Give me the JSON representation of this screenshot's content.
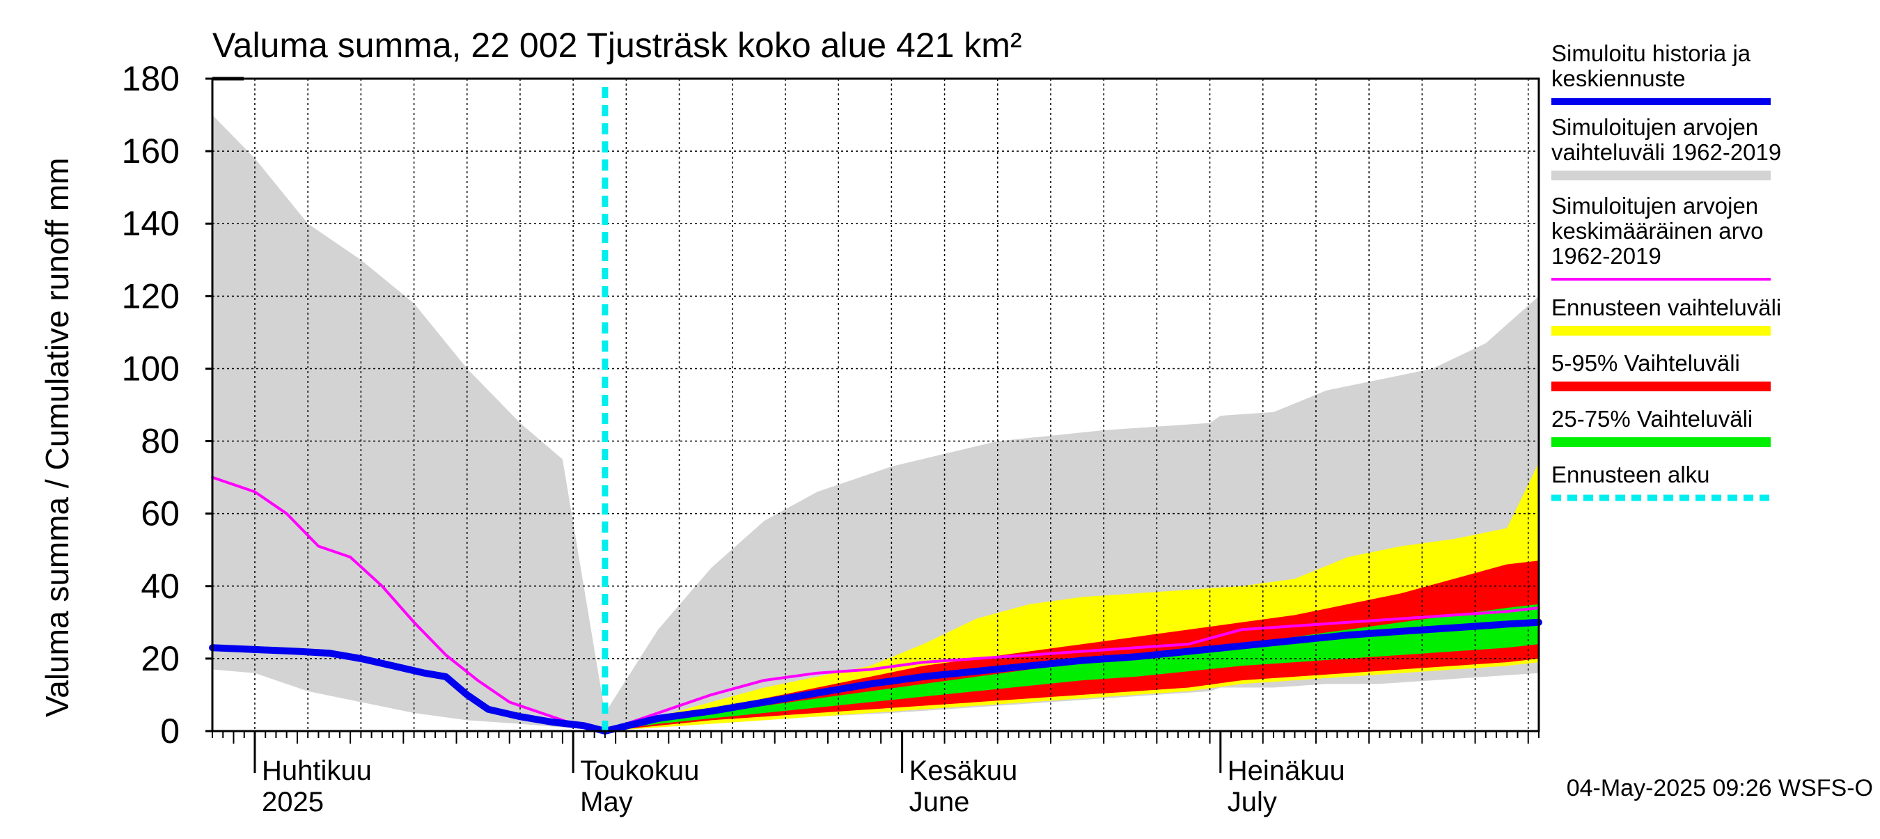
{
  "chart_data": {
    "type": "area",
    "title": "Valuma summa, 22 002 Tjusträsk koko alue 421 km²",
    "ylabel": "Valuma summa / Cumulative runoff    mm",
    "ylim": [
      0,
      180
    ],
    "yticks": [
      0,
      20,
      40,
      60,
      80,
      100,
      120,
      140,
      160,
      180
    ],
    "xlim": [
      "2025-03-28",
      "2025-07-31"
    ],
    "grid": true,
    "legend_placement": "right",
    "footer": "04-May-2025 09:26 WSFS-O",
    "forecast_start": "2025-05-04",
    "month_labels": [
      {
        "top": "Huhtikuu",
        "bottom": "2025",
        "date": "2025-04-01"
      },
      {
        "top": "Toukokuu",
        "bottom": "May",
        "date": "2025-05-01"
      },
      {
        "top": "Kesäkuu",
        "bottom": "June",
        "date": "2025-06-01"
      },
      {
        "top": "Heinäkuu",
        "bottom": "July",
        "date": "2025-07-01"
      }
    ],
    "colors": {
      "history": "#0000ee",
      "range_hist": "#d3d3d3",
      "mean_hist": "#ff00ff",
      "forecast_range": "#ffff00",
      "p5_95": "#ff0000",
      "p25_75": "#00ee00",
      "forecast_start": "#00eeee"
    },
    "legend": [
      {
        "key": "history",
        "label_lines": [
          "Simuloitu historia ja",
          "keskiennuste"
        ],
        "style": "line"
      },
      {
        "key": "range_hist",
        "label_lines": [
          "Simuloitujen arvojen",
          "vaihteluväli 1962-2019"
        ],
        "style": "band"
      },
      {
        "key": "mean_hist",
        "label_lines": [
          "Simuloitujen arvojen",
          "keskimääräinen arvo",
          "   1962-2019"
        ],
        "style": "thin"
      },
      {
        "key": "forecast_range",
        "label_lines": [
          "Ennusteen vaihteluväli"
        ],
        "style": "band"
      },
      {
        "key": "p5_95",
        "label_lines": [
          "5-95% Vaihteluväli"
        ],
        "style": "band"
      },
      {
        "key": "p25_75",
        "label_lines": [
          "25-75% Vaihteluväli"
        ],
        "style": "band"
      },
      {
        "key": "forecast_start",
        "label_lines": [
          "Ennusteen alku"
        ],
        "style": "dash"
      }
    ],
    "series": {
      "range_hist": {
        "x": [
          "2025-03-28",
          "2025-04-01",
          "2025-04-06",
          "2025-04-11",
          "2025-04-16",
          "2025-04-21",
          "2025-04-26",
          "2025-04-30",
          "2025-05-04",
          "2025-05-09",
          "2025-05-14",
          "2025-05-19",
          "2025-05-24",
          "2025-05-31",
          "2025-06-10",
          "2025-06-20",
          "2025-06-30",
          "2025-07-01",
          "2025-07-06",
          "2025-07-11",
          "2025-07-16",
          "2025-07-21",
          "2025-07-26",
          "2025-07-31"
        ],
        "upper": [
          170,
          158,
          140,
          130,
          118,
          100,
          85,
          75,
          5,
          28,
          45,
          58,
          66,
          73,
          80,
          83,
          85,
          87,
          88,
          94,
          97,
          100,
          107,
          120
        ],
        "lower": [
          17,
          16,
          11,
          8,
          5,
          3,
          2,
          1,
          0,
          1,
          2,
          3,
          4,
          5,
          7,
          9,
          11,
          12,
          12,
          13,
          13,
          14,
          15,
          16
        ]
      },
      "forecast_range": {
        "x": [
          "2025-05-04",
          "2025-05-09",
          "2025-05-14",
          "2025-05-19",
          "2025-05-24",
          "2025-05-29",
          "2025-06-03",
          "2025-06-08",
          "2025-06-13",
          "2025-06-18",
          "2025-06-23",
          "2025-06-28",
          "2025-07-03",
          "2025-07-08",
          "2025-07-13",
          "2025-07-18",
          "2025-07-23",
          "2025-07-28",
          "2025-07-31"
        ],
        "upper": [
          1,
          4,
          8,
          12,
          15,
          18,
          24,
          31,
          35,
          37,
          38,
          39,
          40,
          42,
          48,
          51,
          53,
          56,
          74
        ],
        "lower": [
          0,
          1,
          2,
          3,
          4,
          5,
          6,
          7,
          8,
          9,
          10,
          11,
          13,
          14,
          15,
          16,
          17,
          18,
          19
        ]
      },
      "p5_95": {
        "x": [
          "2025-05-04",
          "2025-05-09",
          "2025-05-14",
          "2025-05-19",
          "2025-05-24",
          "2025-05-29",
          "2025-06-03",
          "2025-06-08",
          "2025-06-13",
          "2025-06-18",
          "2025-06-23",
          "2025-06-28",
          "2025-07-03",
          "2025-07-08",
          "2025-07-13",
          "2025-07-18",
          "2025-07-23",
          "2025-07-28",
          "2025-07-31"
        ],
        "upper": [
          0.5,
          3,
          6,
          9,
          12,
          15,
          18,
          20,
          22,
          24,
          26,
          28,
          30,
          32,
          35,
          38,
          42,
          46,
          47
        ],
        "lower": [
          0,
          1.5,
          3,
          4,
          5,
          6,
          7,
          8,
          9,
          10,
          11,
          12,
          14,
          15,
          16,
          17,
          18,
          19,
          20
        ]
      },
      "p25_75": {
        "x": [
          "2025-05-04",
          "2025-05-09",
          "2025-05-14",
          "2025-05-19",
          "2025-05-24",
          "2025-05-29",
          "2025-06-03",
          "2025-06-08",
          "2025-06-13",
          "2025-06-18",
          "2025-06-23",
          "2025-06-28",
          "2025-07-03",
          "2025-07-08",
          "2025-07-13",
          "2025-07-18",
          "2025-07-23",
          "2025-07-28",
          "2025-07-31"
        ],
        "upper": [
          0.2,
          2.5,
          5,
          7,
          9,
          11,
          13,
          15,
          17,
          19,
          20,
          22,
          24,
          26,
          28,
          30,
          32,
          34,
          35
        ],
        "lower": [
          0,
          2,
          3.5,
          5,
          6.5,
          8,
          9.5,
          11,
          12.5,
          14,
          15,
          16.5,
          18,
          19,
          20,
          21,
          22,
          23,
          24
        ]
      },
      "mean_hist": {
        "x": [
          "2025-03-28",
          "2025-04-01",
          "2025-04-04",
          "2025-04-07",
          "2025-04-10",
          "2025-04-13",
          "2025-04-16",
          "2025-04-19",
          "2025-04-22",
          "2025-04-25",
          "2025-04-28",
          "2025-05-01",
          "2025-05-04",
          "2025-05-09",
          "2025-05-14",
          "2025-05-19",
          "2025-05-24",
          "2025-05-29",
          "2025-06-03",
          "2025-06-08",
          "2025-06-13",
          "2025-06-18",
          "2025-06-23",
          "2025-06-28",
          "2025-07-03",
          "2025-07-08",
          "2025-07-13",
          "2025-07-18",
          "2025-07-23",
          "2025-07-28",
          "2025-07-31"
        ],
        "y": [
          70,
          66,
          60,
          51,
          48,
          40,
          30,
          21,
          14,
          8,
          5,
          2,
          0,
          5,
          10,
          14,
          16,
          17,
          19,
          20,
          21,
          22,
          23,
          24,
          28,
          29,
          30,
          31,
          32,
          33,
          34
        ]
      },
      "history": {
        "x": [
          "2025-03-28",
          "2025-04-01",
          "2025-04-05",
          "2025-04-08",
          "2025-04-11",
          "2025-04-14",
          "2025-04-17",
          "2025-04-19",
          "2025-04-21",
          "2025-04-23",
          "2025-04-26",
          "2025-04-29",
          "2025-05-02",
          "2025-05-04",
          "2025-05-09",
          "2025-05-14",
          "2025-05-19",
          "2025-05-24",
          "2025-05-29",
          "2025-06-03",
          "2025-06-08",
          "2025-06-13",
          "2025-06-18",
          "2025-06-23",
          "2025-06-28",
          "2025-07-03",
          "2025-07-08",
          "2025-07-13",
          "2025-07-18",
          "2025-07-23",
          "2025-07-28",
          "2025-07-31"
        ],
        "y": [
          23,
          22.5,
          22,
          21.5,
          20,
          18,
          16,
          15,
          10,
          6,
          4,
          2.5,
          1.5,
          0,
          3.5,
          5.5,
          8,
          10.5,
          13,
          15,
          16.5,
          18,
          19.5,
          20.5,
          22,
          23.5,
          25,
          26.5,
          27.5,
          28.5,
          29.5,
          30
        ]
      }
    }
  }
}
